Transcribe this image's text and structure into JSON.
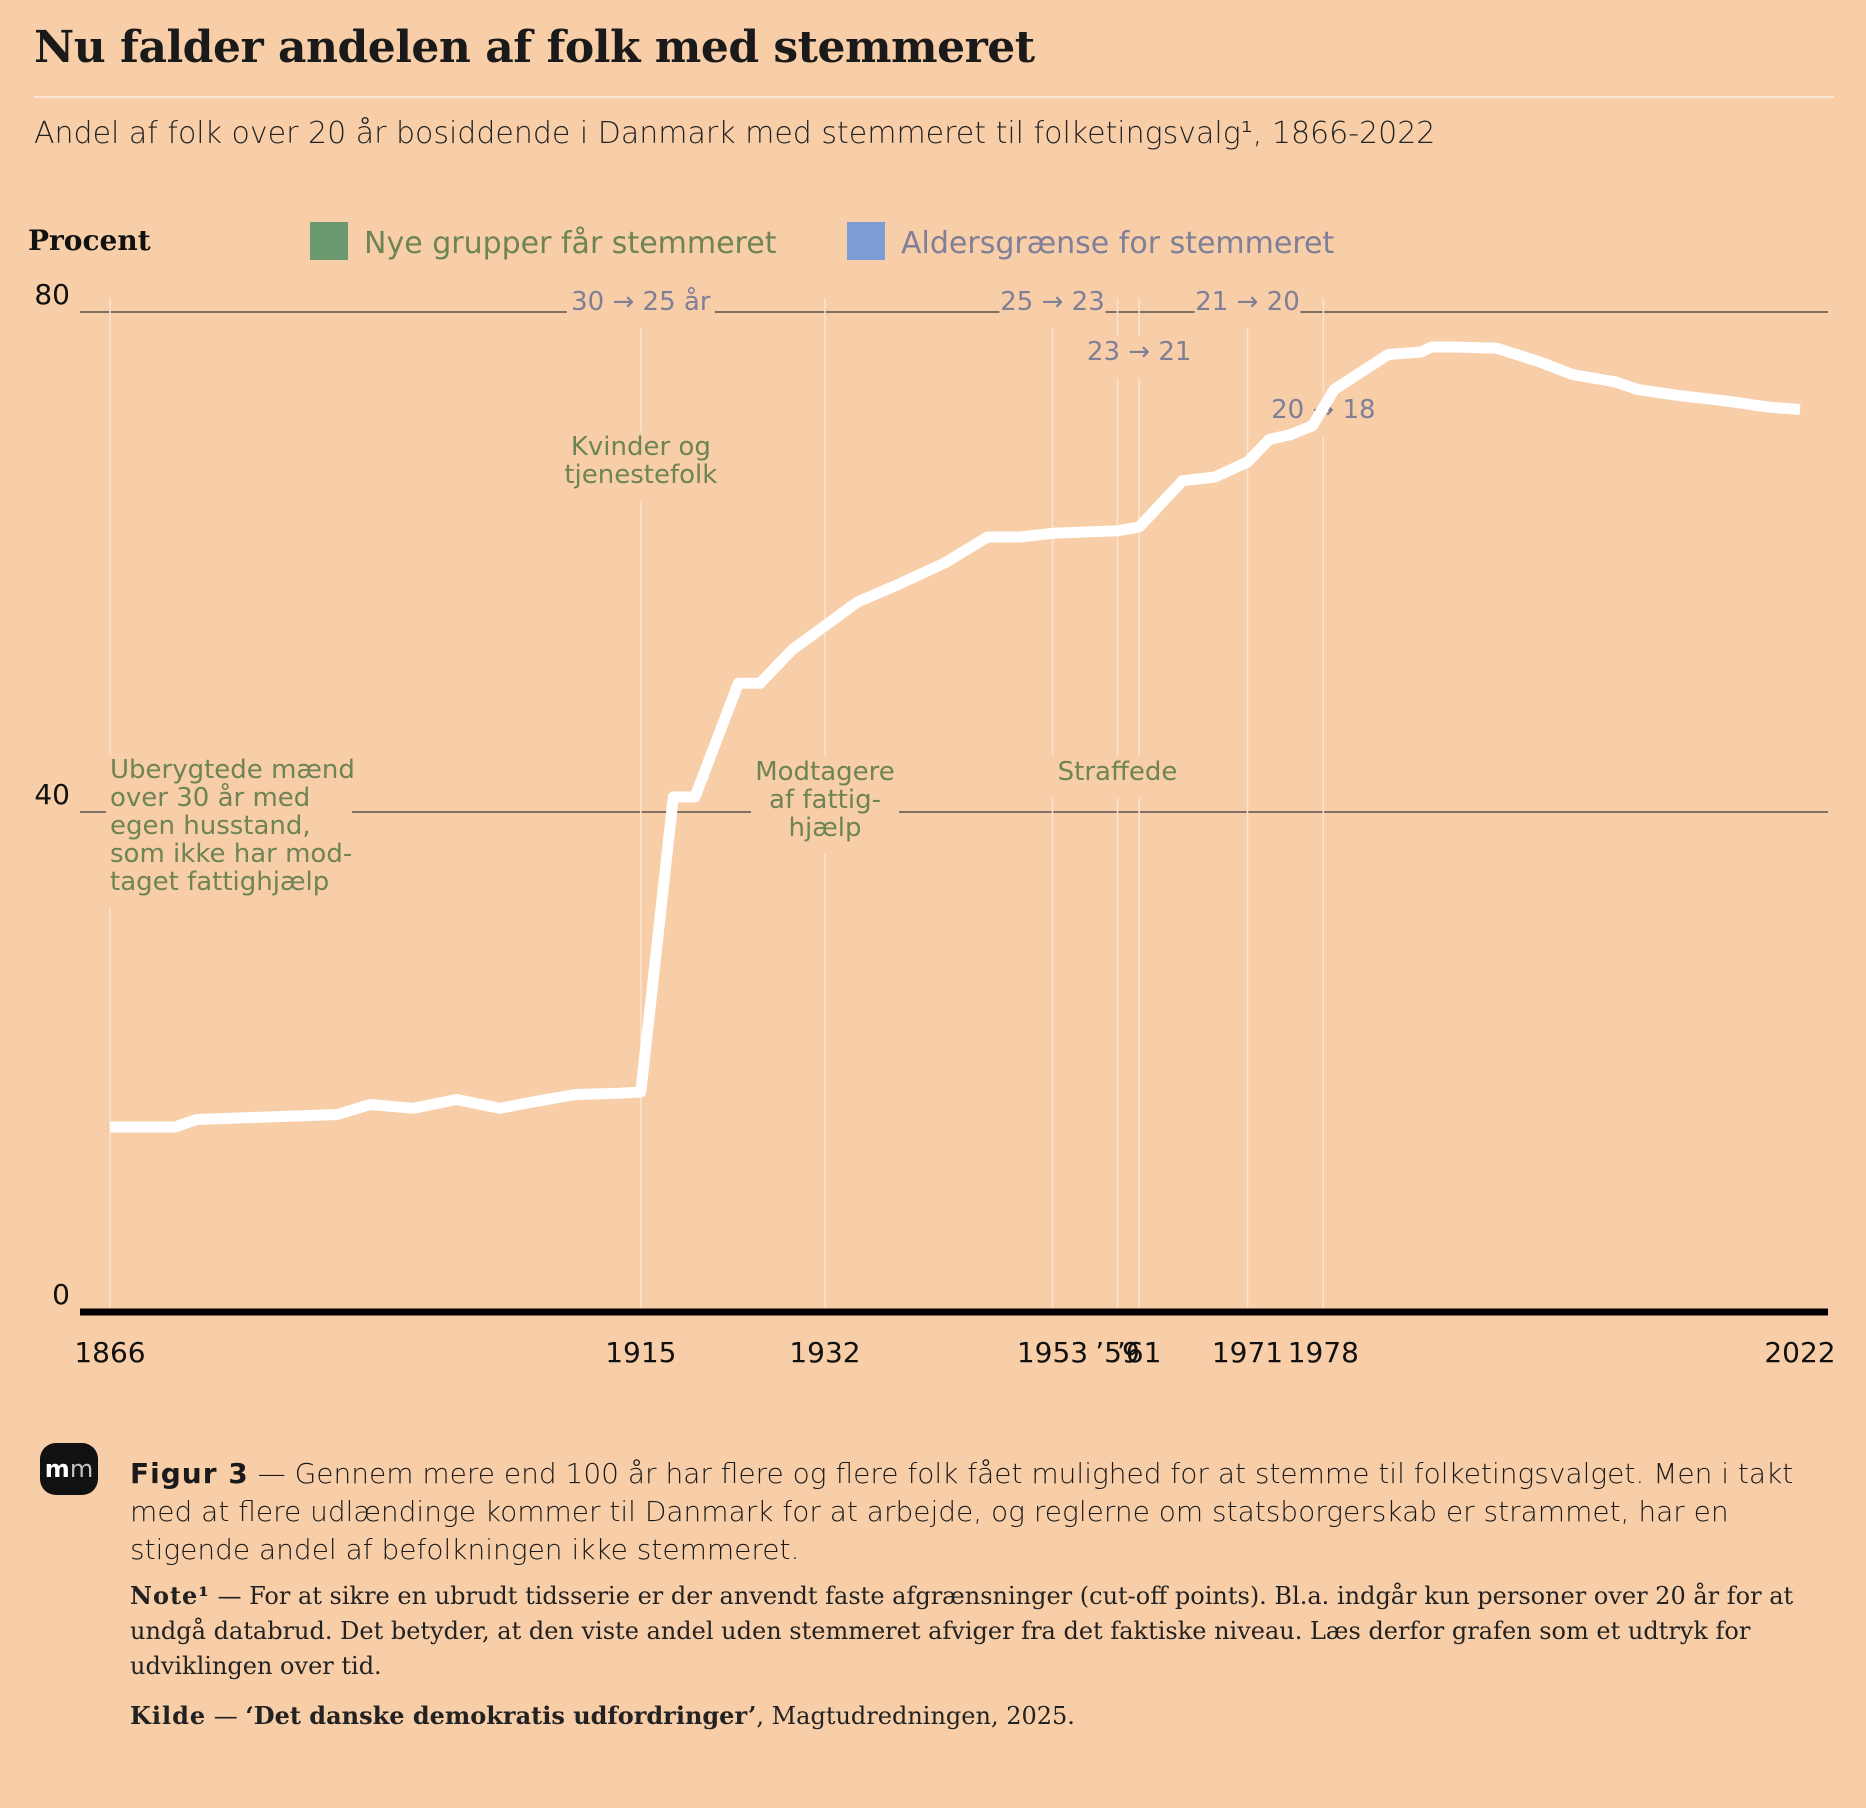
{
  "header": {
    "title": "Nu falder andelen af folk med stemmeret",
    "subtitle": "Andel af folk over 20 år bosiddende i Danmark med stemmeret til folketingsvalg¹, 1866-2022"
  },
  "colors": {
    "background": "#f8cea8",
    "line": "#ffffff",
    "green": "#6b9970",
    "blue": "#7b9cd4",
    "green_text": "#6e8455",
    "blue_text": "#7f7f98"
  },
  "chart_data": {
    "type": "line",
    "ylabel": "Procent",
    "ylim": [
      0,
      80
    ],
    "yticks": [
      "0",
      "40",
      "80"
    ],
    "xlim": [
      1866,
      2022
    ],
    "xticks": [
      {
        "year": 1866,
        "label": "1866"
      },
      {
        "year": 1915,
        "label": "1915"
      },
      {
        "year": 1932,
        "label": "1932"
      },
      {
        "year": 1953,
        "label": "1953"
      },
      {
        "year": 1959,
        "label": "’59"
      },
      {
        "year": 1961,
        "label": "’61"
      },
      {
        "year": 1971,
        "label": "1971"
      },
      {
        "year": 1978,
        "label": "1978"
      },
      {
        "year": 2022,
        "label": "2022"
      }
    ],
    "legend": [
      {
        "label": "Nye grupper får stemmeret",
        "color": "#6b9970"
      },
      {
        "label": "Aldersgrænse for stemmeret",
        "color": "#7b9cd4"
      }
    ],
    "legend_position": "top",
    "series": [
      {
        "x": [
          1866,
          1872,
          1874,
          1887,
          1890,
          1894,
          1898,
          1902,
          1905,
          1909,
          1913,
          1915,
          1918,
          1920,
          1924,
          1926,
          1929,
          1935,
          1939,
          1943,
          1947,
          1950,
          1953,
          1959,
          1961,
          1965,
          1968,
          1971,
          1973,
          1975,
          1977,
          1979,
          1984,
          1987,
          1988,
          1990,
          1994,
          1998,
          2001,
          2005,
          2007,
          2011,
          2015,
          2019,
          2022
        ],
        "y": [
          14.8,
          14.8,
          15.4,
          15.8,
          16.6,
          16.3,
          17.0,
          16.3,
          16.8,
          17.4,
          17.5,
          17.6,
          41.2,
          41.2,
          50.3,
          50.3,
          53.0,
          56.8,
          58.3,
          59.9,
          62.0,
          62.0,
          62.3,
          62.5,
          62.8,
          66.5,
          66.8,
          68.0,
          69.8,
          70.2,
          70.9,
          73.8,
          76.6,
          76.8,
          77.2,
          77.2,
          77.1,
          76.0,
          75.0,
          74.4,
          73.8,
          73.3,
          72.9,
          72.4,
          72.2
        ]
      }
    ],
    "annotations": [
      {
        "id": "ann-1866",
        "x": 1866,
        "lines": [
          "Uberygtede mænd",
          "over 30 år med",
          "egen husstand,",
          "som ikke har mod-",
          "taget fattighjælp"
        ],
        "kind": "group"
      },
      {
        "id": "ann-1915-group",
        "x": 1915,
        "lines": [
          "Kvinder og",
          "tjenestefolk"
        ],
        "kind": "group"
      },
      {
        "id": "ann-1915-age",
        "x": 1915,
        "lines": [
          "30 → 25 år"
        ],
        "kind": "age"
      },
      {
        "id": "ann-1932",
        "x": 1932,
        "lines": [
          "Modtagere",
          "af fattig-",
          "hjælp"
        ],
        "kind": "group"
      },
      {
        "id": "ann-1953",
        "x": 1953,
        "lines": [
          "25 → 23"
        ],
        "kind": "age"
      },
      {
        "id": "ann-1959",
        "x": 1959,
        "lines": [
          "Straffede"
        ],
        "kind": "group"
      },
      {
        "id": "ann-1961",
        "x": 1961,
        "lines": [
          "23 → 21"
        ],
        "kind": "age"
      },
      {
        "id": "ann-1971",
        "x": 1971,
        "lines": [
          "21 → 20"
        ],
        "kind": "age"
      },
      {
        "id": "ann-1978",
        "x": 1978,
        "lines": [
          "20 → 18"
        ],
        "kind": "age"
      }
    ]
  },
  "caption": {
    "lead": "Figur 3",
    "dash": " — ",
    "text": "Gennem mere end 100 år har flere og flere folk fået mulighed for at stemme til folketingsvalget. Men i takt med at flere udlændinge kommer til Danmark for at arbejde, og reglerne om statsborgerskab er strammet, har en stigende andel af befolkningen ikke stemmeret."
  },
  "note": {
    "lead": "Note¹",
    "dash": " — ",
    "text": "For at sikre en ubrudt tidsserie er der anvendt faste afgrænsninger (cut-off points). Bl.a. indgår kun personer over 20 år for at undgå databrud. Det betyder, at den viste andel uden stemmeret afviger fra det faktiske niveau. Læs derfor grafen som et udtryk for udviklingen over tid."
  },
  "source": {
    "lead": "Kilde",
    "dash": " — ",
    "work": "‘Det danske demokratis udfordringer’",
    "rest": ", Magtudredningen, 2025."
  },
  "logo": {
    "m1": "m",
    "m2": "m"
  }
}
